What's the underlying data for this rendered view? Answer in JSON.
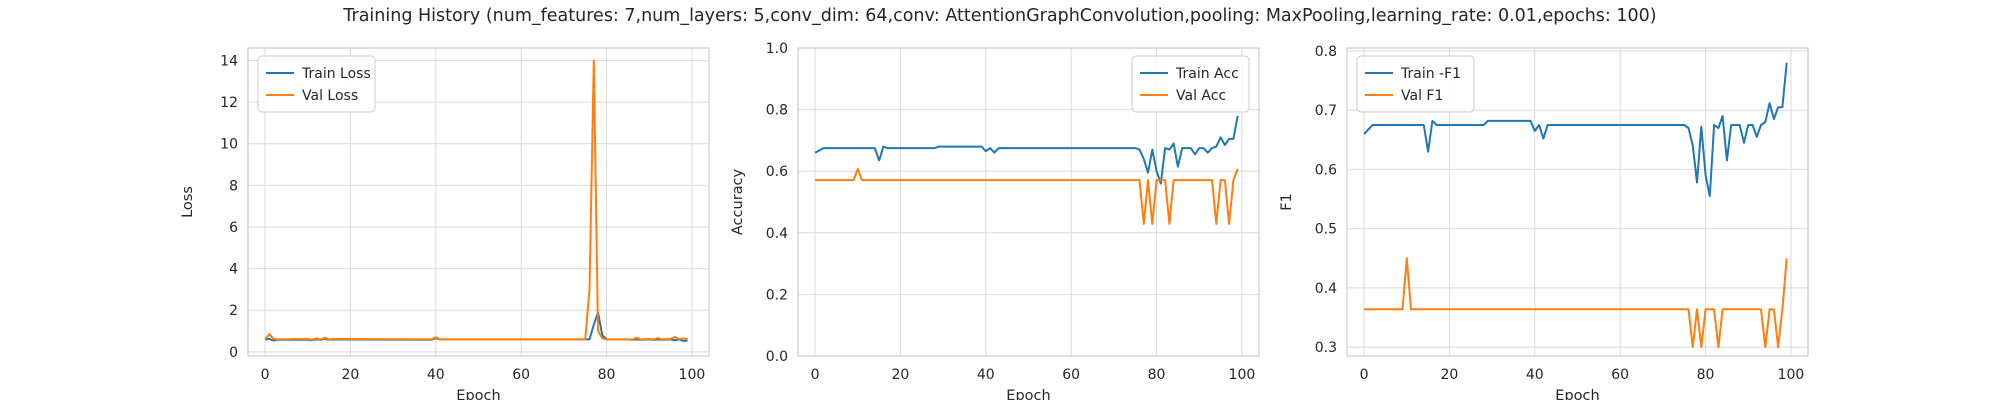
{
  "figure": {
    "title": "Training History (num_features: 7,num_layers: 5,conv_dim: 64,conv: AttentionGraphConvolution,pooling: MaxPooling,learning_rate: 0.01,epochs: 100)"
  },
  "colors": {
    "train": "#1f77b4",
    "val": "#ff7f0e",
    "grid": "#d9d9d9",
    "axis": "#cccccc"
  },
  "chart_data": [
    {
      "type": "line",
      "title": "",
      "xlabel": "Epoch",
      "ylabel": "Loss",
      "xlim": [
        -4,
        104
      ],
      "ylim": [
        -0.2,
        14.6
      ],
      "xticks": [
        0,
        20,
        40,
        60,
        80,
        100
      ],
      "yticks": [
        0,
        2,
        4,
        6,
        8,
        10,
        12,
        14
      ],
      "ytick_labels": [
        "0",
        "2",
        "4",
        "6",
        "8",
        "10",
        "12",
        "14"
      ],
      "grid": true,
      "legend": "upper-left",
      "series": [
        {
          "name": "Train Loss",
          "color": "#1f77b4",
          "x": [
            0,
            1,
            2,
            3,
            10,
            11,
            12,
            13,
            14,
            15,
            16,
            39,
            40,
            41,
            42,
            76,
            77,
            78,
            79,
            80,
            85,
            86,
            87,
            88,
            90,
            91,
            92,
            93,
            95,
            96,
            97,
            98,
            99
          ],
          "y": [
            0.6,
            0.62,
            0.55,
            0.58,
            0.58,
            0.56,
            0.6,
            0.58,
            0.62,
            0.58,
            0.6,
            0.58,
            0.65,
            0.6,
            0.6,
            0.6,
            1.3,
            1.9,
            0.8,
            0.6,
            0.6,
            0.58,
            0.6,
            0.58,
            0.6,
            0.58,
            0.6,
            0.58,
            0.6,
            0.55,
            0.6,
            0.52,
            0.55
          ]
        },
        {
          "name": "Val Loss",
          "color": "#ff7f0e",
          "x": [
            0,
            1,
            2,
            3,
            10,
            11,
            12,
            13,
            14,
            15,
            16,
            39,
            40,
            41,
            42,
            75,
            76,
            77,
            78,
            79,
            80,
            85,
            86,
            87,
            88,
            90,
            91,
            92,
            93,
            95,
            96,
            97,
            98,
            99
          ],
          "y": [
            0.6,
            0.85,
            0.62,
            0.6,
            0.62,
            0.58,
            0.65,
            0.6,
            0.68,
            0.6,
            0.62,
            0.6,
            0.7,
            0.6,
            0.6,
            0.6,
            3.0,
            14.0,
            1.0,
            0.65,
            0.6,
            0.6,
            0.58,
            0.68,
            0.6,
            0.62,
            0.6,
            0.66,
            0.6,
            0.62,
            0.72,
            0.6,
            0.65,
            0.6
          ]
        }
      ]
    },
    {
      "type": "line",
      "title": "",
      "xlabel": "Epoch",
      "ylabel": "Accuracy",
      "xlim": [
        -4,
        104
      ],
      "ylim": [
        0,
        1.0
      ],
      "xticks": [
        0,
        20,
        40,
        60,
        80,
        100
      ],
      "yticks": [
        0,
        0.2,
        0.4,
        0.6,
        0.8,
        1.0
      ],
      "ytick_labels": [
        "0.0",
        "0.2",
        "0.4",
        "0.6",
        "0.8",
        "1.0"
      ],
      "grid": true,
      "legend": "upper-right",
      "series": [
        {
          "name": "Train Acc",
          "color": "#1f77b4",
          "x": [
            0,
            2,
            3,
            14,
            15,
            16,
            17,
            28,
            29,
            38,
            39,
            40,
            41,
            42,
            43,
            44,
            75,
            76,
            77,
            78,
            79,
            80,
            81,
            82,
            83,
            84,
            85,
            86,
            87,
            88,
            89,
            90,
            91,
            92,
            93,
            94,
            95,
            96,
            97,
            98,
            99
          ],
          "y": [
            0.66,
            0.675,
            0.675,
            0.675,
            0.635,
            0.68,
            0.675,
            0.675,
            0.68,
            0.68,
            0.68,
            0.665,
            0.675,
            0.66,
            0.675,
            0.675,
            0.675,
            0.67,
            0.64,
            0.595,
            0.67,
            0.6,
            0.56,
            0.675,
            0.67,
            0.69,
            0.615,
            0.675,
            0.675,
            0.675,
            0.655,
            0.675,
            0.675,
            0.66,
            0.675,
            0.68,
            0.71,
            0.685,
            0.705,
            0.705,
            0.78
          ]
        },
        {
          "name": "Val Acc",
          "color": "#ff7f0e",
          "x": [
            0,
            9,
            10,
            11,
            76,
            77,
            78,
            79,
            80,
            81,
            82,
            83,
            84,
            85,
            86,
            87,
            92,
            93,
            94,
            95,
            96,
            97,
            98,
            99
          ],
          "y": [
            0.571,
            0.571,
            0.607,
            0.571,
            0.571,
            0.429,
            0.571,
            0.429,
            0.571,
            0.571,
            0.571,
            0.429,
            0.571,
            0.571,
            0.571,
            0.571,
            0.571,
            0.571,
            0.429,
            0.571,
            0.571,
            0.429,
            0.571,
            0.607
          ]
        }
      ]
    },
    {
      "type": "line",
      "title": "",
      "xlabel": "Epoch",
      "ylabel": "F1",
      "xlim": [
        -4,
        104
      ],
      "ylim": [
        0.285,
        0.805
      ],
      "xticks": [
        0,
        20,
        40,
        60,
        80,
        100
      ],
      "yticks": [
        0.3,
        0.4,
        0.5,
        0.6,
        0.7,
        0.8
      ],
      "ytick_labels": [
        "0.3",
        "0.4",
        "0.5",
        "0.6",
        "0.7",
        "0.8"
      ],
      "grid": true,
      "legend": "upper-left",
      "series": [
        {
          "name": "Train -F1",
          "color": "#1f77b4",
          "x": [
            0,
            2,
            3,
            14,
            15,
            16,
            17,
            28,
            29,
            38,
            39,
            40,
            41,
            42,
            43,
            44,
            75,
            76,
            77,
            78,
            79,
            80,
            81,
            82,
            83,
            84,
            85,
            86,
            87,
            88,
            89,
            90,
            91,
            92,
            93,
            94,
            95,
            96,
            97,
            98,
            99
          ],
          "y": [
            0.66,
            0.675,
            0.675,
            0.675,
            0.63,
            0.682,
            0.675,
            0.675,
            0.682,
            0.682,
            0.682,
            0.665,
            0.675,
            0.652,
            0.675,
            0.675,
            0.675,
            0.67,
            0.64,
            0.578,
            0.672,
            0.59,
            0.555,
            0.675,
            0.67,
            0.69,
            0.615,
            0.675,
            0.675,
            0.675,
            0.645,
            0.675,
            0.675,
            0.655,
            0.675,
            0.68,
            0.712,
            0.685,
            0.705,
            0.705,
            0.78
          ]
        },
        {
          "name": "Val F1",
          "color": "#ff7f0e",
          "x": [
            0,
            9,
            10,
            11,
            76,
            77,
            78,
            79,
            80,
            81,
            82,
            83,
            84,
            85,
            86,
            87,
            92,
            93,
            94,
            95,
            96,
            97,
            98,
            99
          ],
          "y": [
            0.364,
            0.364,
            0.45,
            0.364,
            0.364,
            0.3,
            0.364,
            0.3,
            0.364,
            0.364,
            0.364,
            0.3,
            0.364,
            0.364,
            0.364,
            0.364,
            0.364,
            0.364,
            0.3,
            0.364,
            0.364,
            0.3,
            0.364,
            0.45
          ]
        }
      ]
    }
  ]
}
